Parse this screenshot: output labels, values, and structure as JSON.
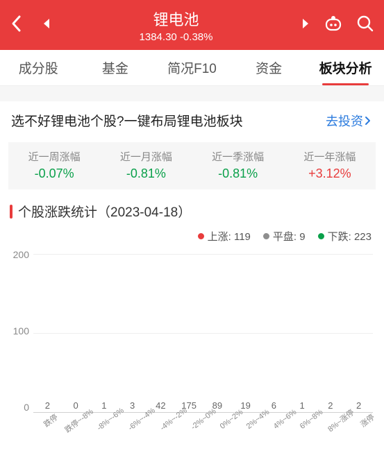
{
  "colors": {
    "header_bg": "#e83c3c",
    "up": "#e83c3c",
    "down": "#0aa04a",
    "flat": "#8e8e8e",
    "grid": "#eeeeee",
    "axis": "#d0d0d0",
    "link": "#2b7bde"
  },
  "header": {
    "title": "锂电池",
    "price": "1384.30",
    "change": "-0.38%"
  },
  "tabs": [
    {
      "label": "成分股",
      "active": false
    },
    {
      "label": "基金",
      "active": false
    },
    {
      "label": "简况F10",
      "active": false
    },
    {
      "label": "资金",
      "active": false
    },
    {
      "label": "板块分析",
      "active": true
    }
  ],
  "promo": {
    "text": "选不好锂电池个股?一键布局锂电池板块",
    "link_label": "去投资"
  },
  "period_stats": [
    {
      "label": "近一周涨幅",
      "value": "-0.07%",
      "dir": "down"
    },
    {
      "label": "近一月涨幅",
      "value": "-0.81%",
      "dir": "down"
    },
    {
      "label": "近一季涨幅",
      "value": "-0.81%",
      "dir": "down"
    },
    {
      "label": "近一年涨幅",
      "value": "+3.12%",
      "dir": "up"
    }
  ],
  "section": {
    "title": "个股涨跌统计",
    "date": "（2023-04-18）"
  },
  "legend": {
    "up": {
      "label": "上涨",
      "count": 119
    },
    "flat": {
      "label": "平盘",
      "count": 9
    },
    "down": {
      "label": "下跌",
      "count": 223
    }
  },
  "chart": {
    "type": "bar",
    "ylim": [
      0,
      200
    ],
    "yticks": [
      0,
      100,
      200
    ],
    "bar_width_pct": 62,
    "label_fontsize": 13,
    "axis_fontsize": 14,
    "xlabel_fontsize": 11,
    "xlabel_rotate_deg": -38,
    "categories": [
      "跌停",
      "跌停~-8%",
      "-8%~-6%",
      "-6%~-4%",
      "-4%~-2%",
      "-2%~0%",
      "0%~2%",
      "2%~4%",
      "4%~6%",
      "6%~8%",
      "8%~涨停",
      "涨停"
    ],
    "values": [
      2,
      0,
      1,
      3,
      42,
      175,
      89,
      19,
      6,
      1,
      2,
      2
    ],
    "kinds": [
      "down",
      "down",
      "down",
      "down",
      "down",
      "down",
      "up",
      "up",
      "up",
      "up",
      "up",
      "up"
    ]
  }
}
